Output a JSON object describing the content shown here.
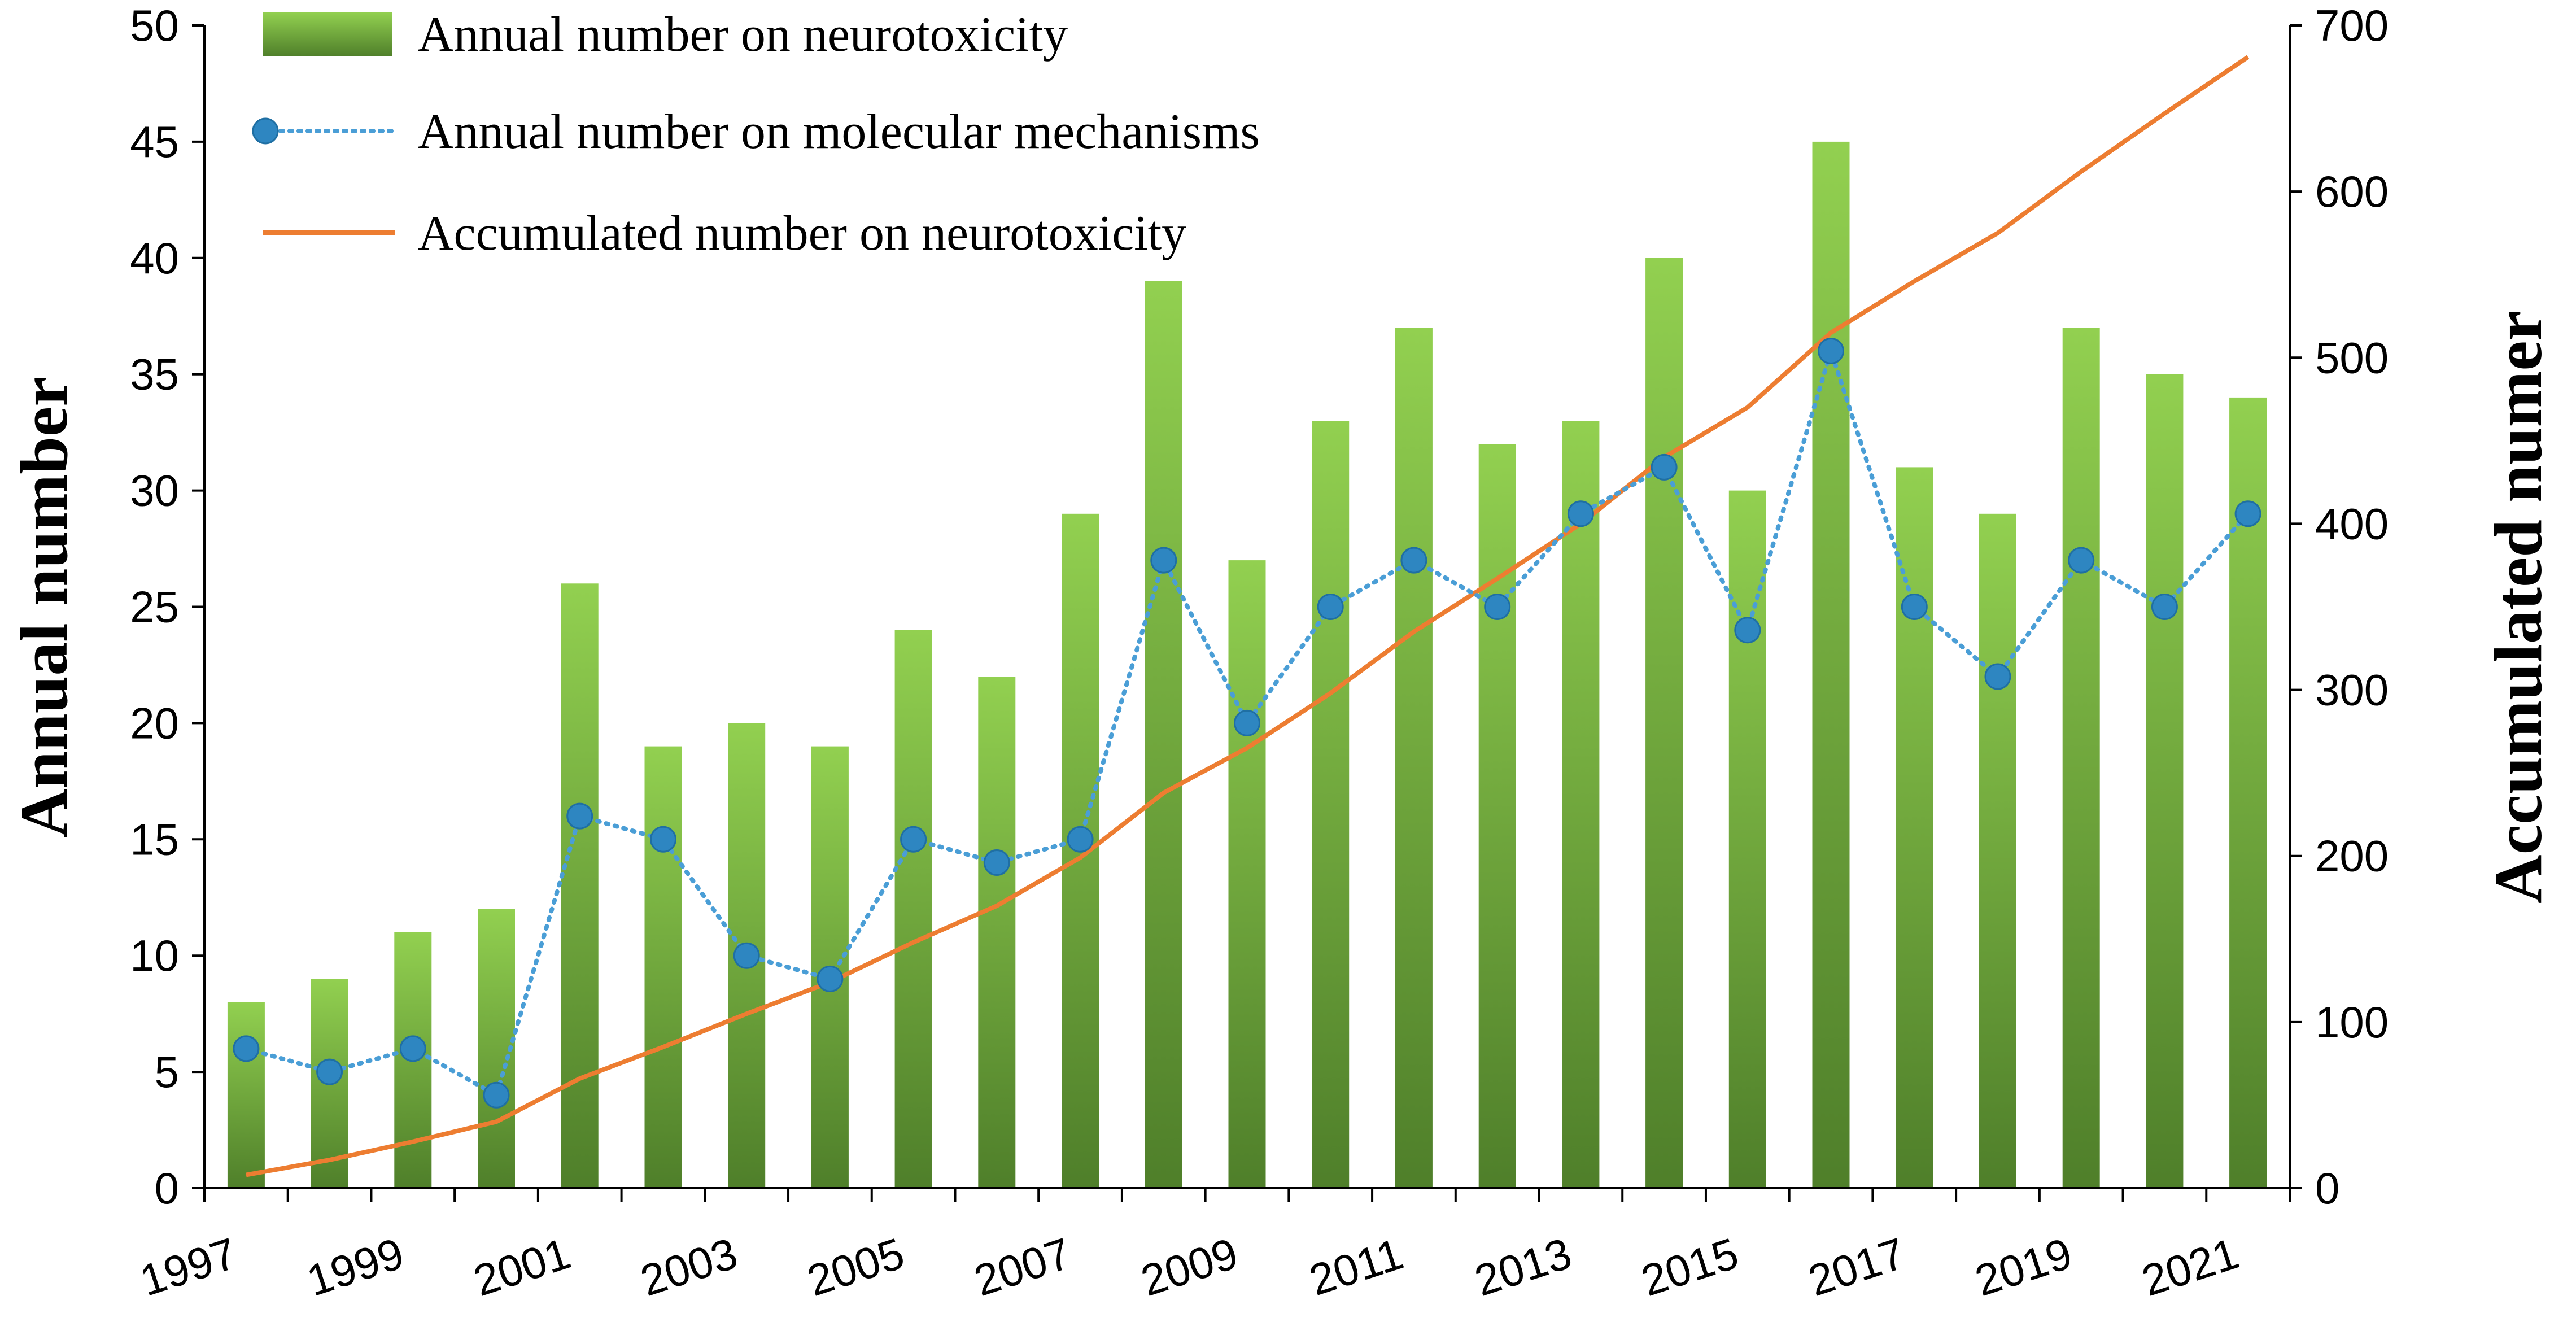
{
  "chart_data": {
    "type": "bar",
    "title": "",
    "categories": [
      "1997",
      "1998",
      "1999",
      "2000",
      "2001",
      "2002",
      "2003",
      "2004",
      "2005",
      "2006",
      "2007",
      "2008",
      "2009",
      "2010",
      "2011",
      "2012",
      "2013",
      "2014",
      "2015",
      "2016",
      "2017",
      "2018",
      "2019",
      "2020",
      "2021"
    ],
    "x_tick_labels": [
      "1997",
      "1999",
      "2001",
      "2003",
      "2005",
      "2007",
      "2009",
      "2011",
      "2013",
      "2015",
      "2017",
      "2019",
      "2021"
    ],
    "series": [
      {
        "name": "Annual number on neurotoxicity",
        "type": "bar",
        "axis": "left",
        "values": [
          8,
          9,
          11,
          12,
          26,
          19,
          20,
          19,
          24,
          22,
          29,
          39,
          27,
          33,
          37,
          32,
          33,
          40,
          30,
          45,
          31,
          29,
          37,
          35,
          34
        ]
      },
      {
        "name": "Annual number on molecular mechanisms",
        "type": "line-dotted-markers",
        "axis": "left",
        "values": [
          6,
          5,
          6,
          4,
          16,
          15,
          10,
          9,
          15,
          14,
          15,
          27,
          20,
          25,
          27,
          25,
          29,
          31,
          24,
          36,
          25,
          22,
          27,
          25,
          29
        ]
      },
      {
        "name": "Accumulated number on neurotoxicity",
        "type": "line",
        "axis": "right",
        "values": [
          8,
          17,
          28,
          40,
          66,
          85,
          105,
          124,
          148,
          170,
          199,
          238,
          265,
          298,
          335,
          367,
          400,
          440,
          470,
          515,
          546,
          575,
          612,
          647,
          681
        ]
      }
    ],
    "ylabel": "Annual number",
    "y2label": "Accumulated numer",
    "ylim": [
      0,
      50
    ],
    "y_ticks": [
      0,
      5,
      10,
      15,
      20,
      25,
      30,
      35,
      40,
      45,
      50
    ],
    "y2lim": [
      0,
      700
    ],
    "y2_ticks": [
      0,
      100,
      200,
      300,
      400,
      500,
      600,
      700
    ],
    "legend_position": "top-left",
    "grid": false,
    "colors": {
      "bar_top": "#92d050",
      "bar_bottom": "#4f7f2a",
      "dotted_line": "#4a9ed6",
      "marker": "#2e86c1",
      "accumulated_line": "#ed7d31",
      "axis": "#000000"
    }
  }
}
